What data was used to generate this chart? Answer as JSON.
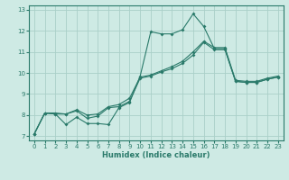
{
  "xlabel": "Humidex (Indice chaleur)",
  "background_color": "#ceeae4",
  "grid_color": "#aacfc8",
  "line_color": "#2a7a6a",
  "xlim": [
    -0.5,
    23.5
  ],
  "ylim": [
    6.8,
    13.2
  ],
  "xticks": [
    0,
    1,
    2,
    3,
    4,
    5,
    6,
    7,
    8,
    9,
    10,
    11,
    12,
    13,
    14,
    15,
    16,
    17,
    18,
    19,
    20,
    21,
    22,
    23
  ],
  "yticks": [
    7,
    8,
    9,
    10,
    11,
    12,
    13
  ],
  "line1_x": [
    0,
    1,
    2,
    3,
    4,
    5,
    6,
    7,
    8,
    9,
    10,
    11,
    12,
    13,
    14,
    15,
    16,
    17,
    18,
    19,
    20,
    21,
    22,
    23
  ],
  "line1_y": [
    7.1,
    8.1,
    8.05,
    7.55,
    7.9,
    7.6,
    7.6,
    7.55,
    8.35,
    8.6,
    9.85,
    11.95,
    11.85,
    11.85,
    12.05,
    12.8,
    12.2,
    11.15,
    11.15,
    9.6,
    9.55,
    9.55,
    9.7,
    9.8
  ],
  "line2_x": [
    0,
    1,
    2,
    3,
    4,
    5,
    6,
    7,
    8,
    9,
    10,
    11,
    12,
    13,
    14,
    15,
    16,
    17,
    18,
    19,
    20,
    21,
    22,
    23
  ],
  "line2_y": [
    7.1,
    8.1,
    8.05,
    8.05,
    8.2,
    7.85,
    7.95,
    8.35,
    8.4,
    8.65,
    9.75,
    9.85,
    10.05,
    10.2,
    10.45,
    10.85,
    11.45,
    11.1,
    11.1,
    9.6,
    9.55,
    9.55,
    9.7,
    9.8
  ],
  "line3_x": [
    0,
    1,
    2,
    3,
    4,
    5,
    6,
    7,
    8,
    9,
    10,
    11,
    12,
    13,
    14,
    15,
    16,
    17,
    18,
    19,
    20,
    21,
    22,
    23
  ],
  "line3_y": [
    7.1,
    8.1,
    8.1,
    8.05,
    8.25,
    8.0,
    8.05,
    8.4,
    8.5,
    8.8,
    9.8,
    9.9,
    10.1,
    10.3,
    10.55,
    11.0,
    11.5,
    11.2,
    11.2,
    9.65,
    9.6,
    9.6,
    9.75,
    9.85
  ]
}
